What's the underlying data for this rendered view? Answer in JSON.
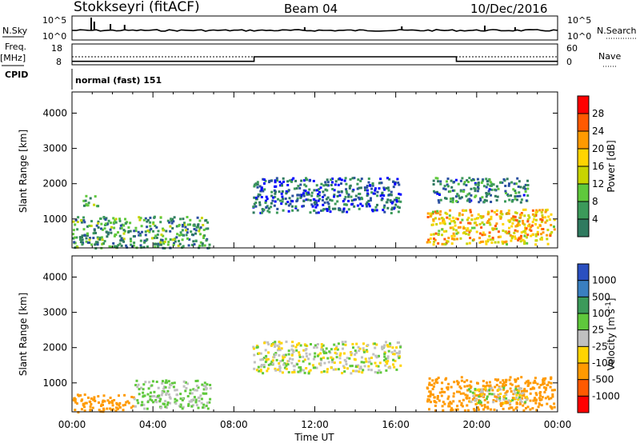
{
  "header": {
    "station": "Stokkseyri (fitACF)",
    "beam": "Beam 04",
    "date": "10/Dec/2016"
  },
  "noise_panel": {
    "left_label": "N.Sky",
    "right_label": "N.Search",
    "left_ticks": [
      "10^5",
      "10^0"
    ],
    "right_ticks": [
      "10^5",
      "10^0"
    ]
  },
  "freq_panel": {
    "left_label_top": "Freq.",
    "left_label_unit": "[MHz]",
    "left_ticks": [
      "18",
      "8"
    ],
    "right_label": "Nave",
    "right_ticks": [
      "60",
      "0"
    ],
    "freq_level_mhz": 12,
    "nave_steps": [
      {
        "from_hour": 0,
        "to_hour": 9,
        "nave": 7
      },
      {
        "from_hour": 9,
        "to_hour": 19,
        "nave": 24
      },
      {
        "from_hour": 19,
        "to_hour": 24,
        "nave": 7
      }
    ]
  },
  "cpid": {
    "label": "CPID",
    "program": "normal (fast) 151"
  },
  "chart_data": [
    {
      "type": "heatmap",
      "name": "power",
      "ylabel": "Slant Range [km]",
      "xlabel": "",
      "ylim": [
        180,
        4600
      ],
      "xlim_hours": [
        0,
        24
      ],
      "x_ticks": [
        "00:00",
        "04:00",
        "08:00",
        "12:00",
        "16:00",
        "20:00",
        "00:00"
      ],
      "y_ticks": [
        1000,
        2000,
        3000,
        4000
      ],
      "colorbar": {
        "label": "Power [dB]",
        "ticks": [
          "28",
          "24",
          "20",
          "16",
          "12",
          "8",
          "4"
        ],
        "colors": [
          "#ff0000",
          "#ff5a00",
          "#ff9a00",
          "#ffd400",
          "#c8d400",
          "#5fc83c",
          "#3c9a5a",
          "#2f7a5f",
          "#2a4fa0",
          "#0000ff"
        ]
      },
      "scatter_regions": [
        {
          "t0": 0.0,
          "t1": 6.8,
          "r0": 200,
          "r1": 1100,
          "level": 10
        },
        {
          "t0": 0.5,
          "t1": 1.3,
          "r0": 1400,
          "r1": 1700,
          "level": 10
        },
        {
          "t0": 8.9,
          "t1": 16.2,
          "r0": 1200,
          "r1": 2200,
          "level": 5
        },
        {
          "t0": 17.5,
          "t1": 23.8,
          "r0": 300,
          "r1": 1300,
          "level": 22
        },
        {
          "t0": 17.8,
          "t1": 22.5,
          "r0": 1500,
          "r1": 2200,
          "level": 8
        }
      ]
    },
    {
      "type": "heatmap",
      "name": "velocity",
      "ylabel": "Slant Range [km]",
      "xlabel": "Time UT",
      "ylim": [
        180,
        4600
      ],
      "xlim_hours": [
        0,
        24
      ],
      "x_ticks": [
        "00:00",
        "04:00",
        "08:00",
        "12:00",
        "16:00",
        "20:00",
        "00:00"
      ],
      "y_ticks": [
        1000,
        2000,
        3000,
        4000
      ],
      "colorbar": {
        "label": "Velocity [m s^-1]",
        "ticks": [
          "1000",
          "500",
          "100",
          "25",
          "-25",
          "-100",
          "-500",
          "-1000"
        ],
        "colors": [
          "#2a4fc0",
          "#3a7fc0",
          "#3c9a5a",
          "#5fc83c",
          "#c0c0c0",
          "#ffd400",
          "#ff9a00",
          "#ff5a00",
          "#ff0000"
        ]
      },
      "scatter_regions": [
        {
          "t0": 0.0,
          "t1": 3.0,
          "r0": 200,
          "r1": 700,
          "level": -300
        },
        {
          "t0": 3.0,
          "t1": 6.8,
          "r0": 300,
          "r1": 1100,
          "level": 40
        },
        {
          "t0": 8.9,
          "t1": 16.2,
          "r0": 1300,
          "r1": 2200,
          "level": 0
        },
        {
          "t0": 17.5,
          "t1": 23.8,
          "r0": 250,
          "r1": 1200,
          "level": -300
        },
        {
          "t0": 19.5,
          "t1": 22.5,
          "r0": 450,
          "r1": 900,
          "level": 0
        }
      ]
    }
  ],
  "colors": {
    "axis": "#000000",
    "background": "#ffffff"
  }
}
